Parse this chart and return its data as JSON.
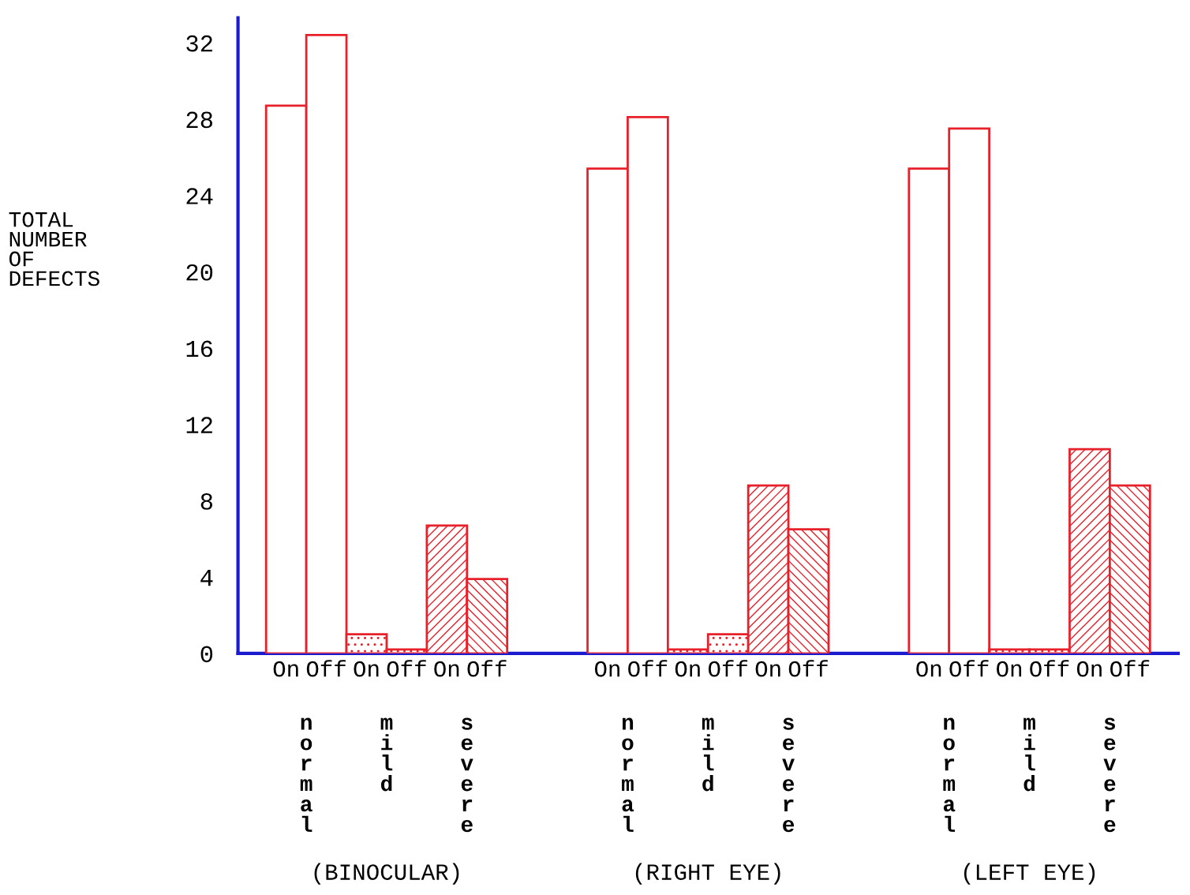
{
  "chart_data": {
    "type": "bar",
    "ylabel": "TOTAL\nNUMBER\nOF\nDEFECTS",
    "categories": [
      "On",
      "Off",
      "On",
      "Off",
      "On",
      "Off",
      null,
      null,
      "On",
      "Off",
      "On",
      "Off",
      "On",
      "Off",
      null,
      null,
      "On",
      "Off",
      "On",
      "Off",
      "On",
      "Off"
    ],
    "values": [
      28.7,
      32.4,
      1.0,
      0.2,
      6.7,
      3.9,
      null,
      null,
      25.4,
      28.1,
      0.2,
      1.0,
      8.8,
      6.5,
      null,
      null,
      25.4,
      27.5,
      0.2,
      0.2,
      10.7,
      8.8
    ],
    "color": "#e8202a",
    "ylim": [
      0,
      33.3
    ],
    "yticks": [
      0,
      4,
      8,
      12,
      16,
      20,
      24,
      28,
      32
    ],
    "grid": false,
    "legend": false,
    "annotations": [
      "normal",
      "mild",
      "severe",
      "(BINOCULAR)",
      "normal",
      "mild",
      "severe",
      "(RIGHT EYE)",
      "normal",
      "mild",
      "severe",
      "(LEFT EYE)"
    ]
  }
}
